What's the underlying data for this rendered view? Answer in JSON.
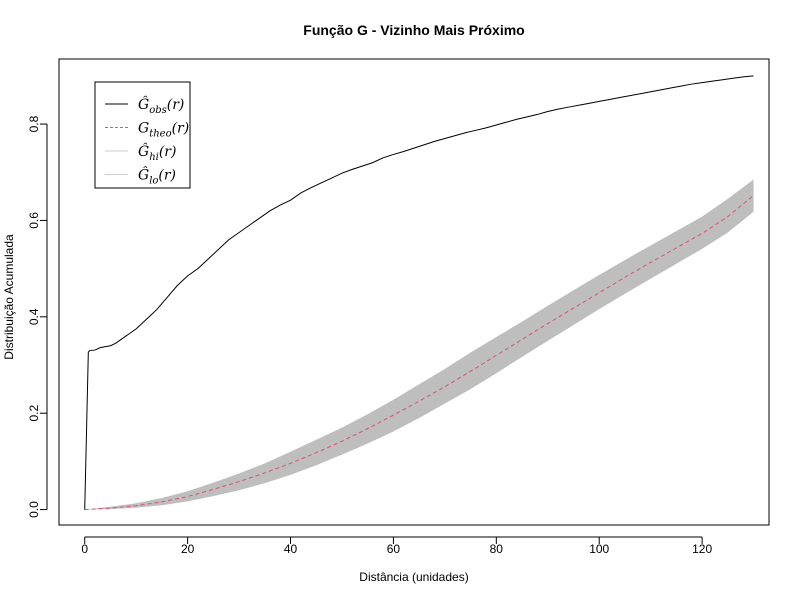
{
  "chart_data": {
    "type": "line",
    "title": "Função G - Vizinho Mais Próximo",
    "xlabel": "Distância (unidades)",
    "ylabel": "Distribuição Acumulada",
    "xlim": [
      -5,
      133
    ],
    "ylim": [
      -0.032,
      0.935
    ],
    "xticks": [
      0,
      20,
      40,
      60,
      80,
      100,
      120
    ],
    "yticks": [
      0.0,
      0.2,
      0.4,
      0.6,
      0.8
    ],
    "xtick_labels": [
      "0",
      "20",
      "40",
      "60",
      "80",
      "100",
      "120"
    ],
    "ytick_labels": [
      "0.0",
      "0.2",
      "0.4",
      "0.6",
      "0.8"
    ],
    "legend_position": "top-left",
    "legend": [
      {
        "sym": "Ĝ",
        "sub": "obs",
        "tail": "(r)",
        "color": "#000000",
        "style": "solid"
      },
      {
        "sym": "G",
        "sub": "theo",
        "tail": "(r)",
        "color": "#df536b",
        "style": "dashed"
      },
      {
        "sym": "Ĝ",
        "sub": "hi",
        "tail": "(r)",
        "color": "#cccccc",
        "style": "solid"
      },
      {
        "sym": "Ĝ",
        "sub": "lo",
        "tail": "(r)",
        "color": "#cccccc",
        "style": "solid"
      }
    ],
    "series": [
      {
        "name": "obs",
        "color": "#000000",
        "x": [
          0,
          0.7,
          1,
          2,
          3,
          5,
          6,
          8,
          10,
          12,
          14,
          16,
          18,
          20,
          22,
          24,
          26,
          28,
          30,
          32,
          34,
          36,
          38,
          40,
          42,
          44,
          46,
          48,
          50,
          52,
          54,
          56,
          58,
          60,
          62,
          64,
          66,
          68,
          70,
          72,
          74,
          76,
          78,
          80,
          82,
          84,
          86,
          88,
          90,
          92,
          94,
          96,
          98,
          100,
          102,
          104,
          106,
          108,
          110,
          112,
          114,
          116,
          118,
          120,
          122,
          124,
          126,
          128,
          130
        ],
        "y": [
          0.0,
          0.327,
          0.33,
          0.331,
          0.336,
          0.34,
          0.345,
          0.36,
          0.375,
          0.395,
          0.415,
          0.44,
          0.465,
          0.485,
          0.5,
          0.52,
          0.54,
          0.56,
          0.575,
          0.59,
          0.605,
          0.62,
          0.632,
          0.642,
          0.657,
          0.668,
          0.678,
          0.688,
          0.698,
          0.706,
          0.713,
          0.72,
          0.73,
          0.737,
          0.743,
          0.75,
          0.757,
          0.764,
          0.77,
          0.776,
          0.782,
          0.787,
          0.792,
          0.798,
          0.804,
          0.81,
          0.815,
          0.82,
          0.826,
          0.831,
          0.835,
          0.839,
          0.843,
          0.847,
          0.851,
          0.855,
          0.859,
          0.863,
          0.867,
          0.871,
          0.875,
          0.879,
          0.883,
          0.886,
          0.889,
          0.892,
          0.895,
          0.898,
          0.9
        ]
      },
      {
        "name": "theo",
        "color": "#df536b",
        "x": [
          0,
          5,
          10,
          15,
          20,
          25,
          30,
          35,
          40,
          45,
          50,
          55,
          60,
          65,
          70,
          75,
          80,
          85,
          90,
          95,
          100,
          105,
          110,
          115,
          120,
          125,
          130
        ],
        "y": [
          0.0,
          0.003,
          0.008,
          0.016,
          0.027,
          0.042,
          0.058,
          0.076,
          0.096,
          0.118,
          0.142,
          0.168,
          0.196,
          0.225,
          0.255,
          0.287,
          0.32,
          0.353,
          0.386,
          0.418,
          0.45,
          0.482,
          0.513,
          0.543,
          0.573,
          0.608,
          0.652
        ]
      },
      {
        "name": "hi",
        "color": "#bebebe",
        "x": [
          0,
          5,
          10,
          15,
          20,
          25,
          30,
          35,
          40,
          45,
          50,
          55,
          60,
          65,
          70,
          75,
          80,
          85,
          90,
          95,
          100,
          105,
          110,
          115,
          120,
          125,
          130
        ],
        "y": [
          0.0,
          0.006,
          0.013,
          0.024,
          0.038,
          0.056,
          0.075,
          0.096,
          0.12,
          0.145,
          0.17,
          0.198,
          0.228,
          0.26,
          0.292,
          0.326,
          0.358,
          0.39,
          0.423,
          0.455,
          0.487,
          0.518,
          0.548,
          0.578,
          0.608,
          0.645,
          0.685
        ]
      },
      {
        "name": "lo",
        "color": "#bebebe",
        "x": [
          0,
          5,
          10,
          15,
          20,
          25,
          30,
          35,
          40,
          45,
          50,
          55,
          60,
          65,
          70,
          75,
          80,
          85,
          90,
          95,
          100,
          105,
          110,
          115,
          120,
          125,
          130
        ],
        "y": [
          0.0,
          0.001,
          0.004,
          0.009,
          0.017,
          0.028,
          0.04,
          0.055,
          0.072,
          0.092,
          0.114,
          0.137,
          0.162,
          0.19,
          0.22,
          0.25,
          0.283,
          0.317,
          0.35,
          0.383,
          0.416,
          0.448,
          0.479,
          0.51,
          0.541,
          0.575,
          0.618
        ]
      }
    ]
  }
}
